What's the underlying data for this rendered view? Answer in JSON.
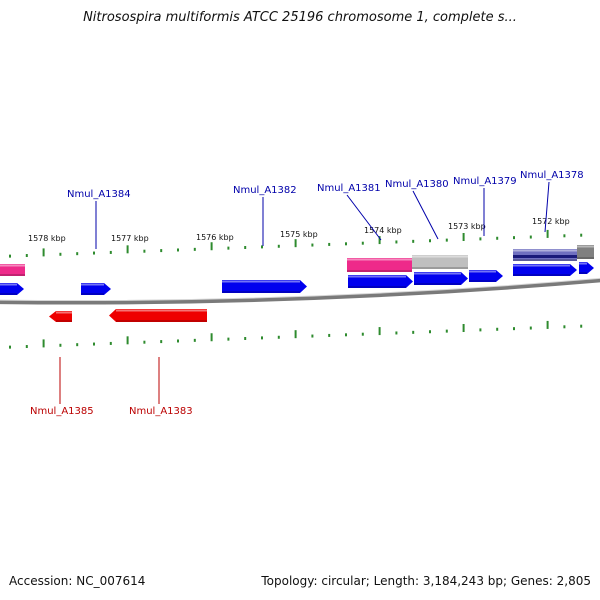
{
  "title": "Nitrosospira multiformis ATCC 25196 chromosome 1, complete s...",
  "footer": {
    "accession": "Accession: NC_007614",
    "summary": "Topology: circular; Length: 3,184,243 bp; Genes: 2,805"
  },
  "colors": {
    "forward": "#0000ee",
    "reverse": "#ee0000",
    "pink": "#ee2a8a",
    "gray": "#bfbfbf",
    "navy": "#1a1a7a",
    "tick": "#2e8b2e",
    "backbone": "#7a7a7a",
    "label_forward": "#0000aa",
    "label_reverse": "#bb0000"
  },
  "kbp_labels": [
    "1578 kbp",
    "1577 kbp",
    "1576 kbp",
    "1575 kbp",
    "1574 kbp",
    "1573 kbp",
    "1572 kbp"
  ],
  "genes": {
    "forward": [
      {
        "name": "Nmul_A1384"
      },
      {
        "name": "Nmul_A1382"
      },
      {
        "name": "Nmul_A1381"
      },
      {
        "name": "Nmul_A1380"
      },
      {
        "name": "Nmul_A1379"
      },
      {
        "name": "Nmul_A1378"
      }
    ],
    "reverse": [
      {
        "name": "Nmul_A1385"
      },
      {
        "name": "Nmul_A1383"
      }
    ]
  }
}
